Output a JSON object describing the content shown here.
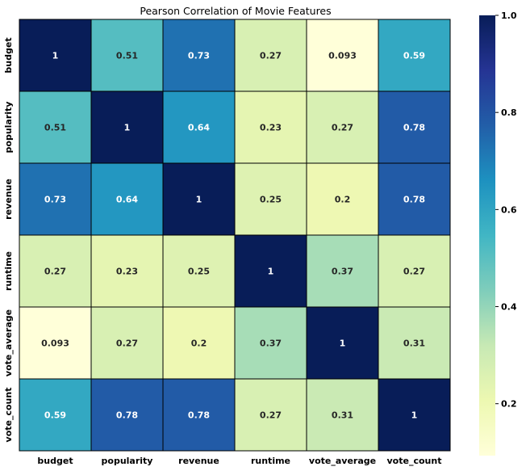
{
  "chart_data": {
    "type": "heatmap",
    "title": "Pearson Correlation of Movie Features",
    "x_labels": [
      "budget",
      "popularity",
      "revenue",
      "runtime",
      "vote_average",
      "vote_count"
    ],
    "y_labels": [
      "budget",
      "popularity",
      "revenue",
      "runtime",
      "vote_average",
      "vote_count"
    ],
    "values": [
      [
        1,
        0.51,
        0.73,
        0.27,
        0.093,
        0.59
      ],
      [
        0.51,
        1,
        0.64,
        0.23,
        0.27,
        0.78
      ],
      [
        0.73,
        0.64,
        1,
        0.25,
        0.2,
        0.78
      ],
      [
        0.27,
        0.23,
        0.25,
        1,
        0.37,
        0.27
      ],
      [
        0.093,
        0.27,
        0.2,
        0.37,
        1,
        0.31
      ],
      [
        0.59,
        0.78,
        0.78,
        0.27,
        0.31,
        1
      ]
    ],
    "annotations": [
      [
        "1",
        "0.51",
        "0.73",
        "0.27",
        "0.093",
        "0.59"
      ],
      [
        "0.51",
        "1",
        "0.64",
        "0.23",
        "0.27",
        "0.78"
      ],
      [
        "0.73",
        "0.64",
        "1",
        "0.25",
        "0.2",
        "0.78"
      ],
      [
        "0.27",
        "0.23",
        "0.25",
        "1",
        "0.37",
        "0.27"
      ],
      [
        "0.093",
        "0.27",
        "0.2",
        "0.37",
        "1",
        "0.31"
      ],
      [
        "0.59",
        "0.78",
        "0.78",
        "0.27",
        "0.31",
        "1"
      ]
    ],
    "colormap": "YlGnBu",
    "colormap_stops": [
      "#ffffd9",
      "#edf8b1",
      "#c7e9b4",
      "#7fcdbb",
      "#41b6c4",
      "#1d91c0",
      "#225ea8",
      "#253494",
      "#081d58"
    ],
    "vmin": 0.093,
    "vmax": 1,
    "colorbar": {
      "ticks": [
        0.2,
        0.4,
        0.6,
        0.8,
        1.0
      ],
      "tick_labels": [
        "0.2",
        "0.4",
        "0.6",
        "0.8",
        "1.0"
      ]
    },
    "cell_border_color": "#000000",
    "annotation_dark_text": "#262626",
    "annotation_light_text": "#ffffff"
  }
}
